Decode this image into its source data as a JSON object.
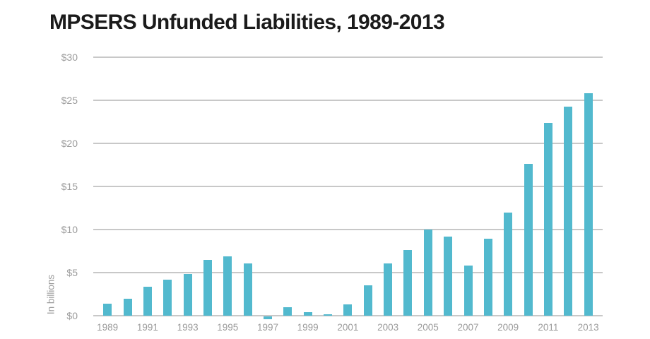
{
  "page": {
    "background": "#ffffff"
  },
  "chart_data": {
    "type": "bar",
    "title": "MPSERS Unfunded Liabilities, 1989-2013",
    "xlabel": "",
    "ylabel": "In billions",
    "units": "USD billions",
    "years": [
      1989,
      1990,
      1991,
      1992,
      1993,
      1994,
      1995,
      1996,
      1997,
      1998,
      1999,
      2000,
      2001,
      2002,
      2003,
      2004,
      2005,
      2006,
      2007,
      2008,
      2009,
      2010,
      2011,
      2012,
      2013
    ],
    "values": [
      1.4,
      2.0,
      3.4,
      4.2,
      4.8,
      6.5,
      6.9,
      6.1,
      -0.3,
      1.0,
      0.4,
      0.2,
      1.3,
      3.5,
      6.1,
      7.6,
      10.0,
      9.2,
      5.8,
      8.9,
      12.0,
      17.6,
      22.4,
      24.3,
      25.8
    ],
    "y_tick_labels": [
      "$0",
      "$5",
      "$10",
      "$15",
      "$20",
      "$25",
      "$30"
    ],
    "y_tick_values": [
      0,
      5,
      10,
      15,
      20,
      25,
      30
    ],
    "x_tick_years": [
      1989,
      1991,
      1993,
      1995,
      1997,
      1999,
      2001,
      2003,
      2005,
      2007,
      2009,
      2011,
      2013
    ],
    "ylim": [
      0,
      30
    ],
    "grid": true,
    "legend_position": "none",
    "colors": {
      "bar": "#52b9ce",
      "grid": "#c8c8c8",
      "axis_text": "#9b9b9b",
      "title": "#1b1b1b",
      "background": "#ffffff"
    }
  }
}
